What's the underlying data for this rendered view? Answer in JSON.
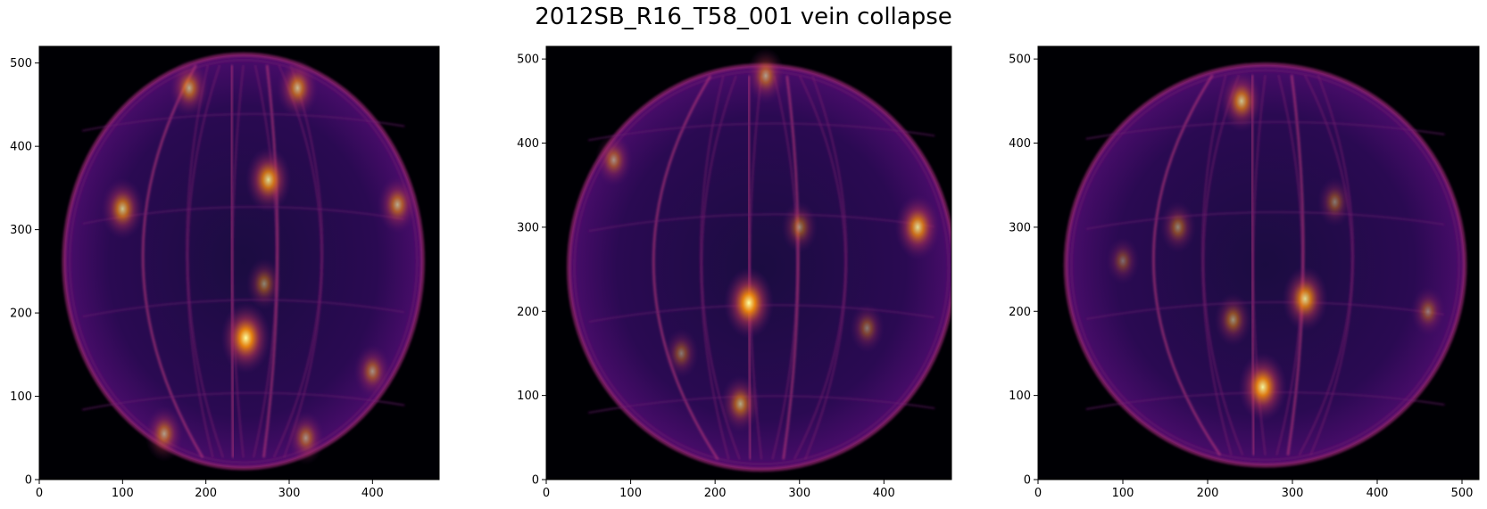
{
  "title": "2012SB_R16_T58_001 vein collapse",
  "chart_data": [
    {
      "type": "heatmap",
      "colormap": "inferno",
      "xlim": [
        0,
        480
      ],
      "ylim": [
        0,
        520
      ],
      "xticks": [
        0,
        100,
        200,
        300,
        400
      ],
      "yticks": [
        0,
        100,
        200,
        300,
        400,
        500
      ],
      "outline": {
        "center": [
          245,
          262
        ],
        "radius_x": 215,
        "radius_y": 248
      },
      "bright_features": [
        {
          "x": 248,
          "y": 170,
          "intensity": 1.0
        },
        {
          "x": 275,
          "y": 360,
          "intensity": 0.85
        },
        {
          "x": 100,
          "y": 325,
          "intensity": 0.75
        },
        {
          "x": 180,
          "y": 470,
          "intensity": 0.65
        },
        {
          "x": 310,
          "y": 470,
          "intensity": 0.7
        },
        {
          "x": 430,
          "y": 330,
          "intensity": 0.65
        },
        {
          "x": 150,
          "y": 55,
          "intensity": 0.6
        },
        {
          "x": 320,
          "y": 50,
          "intensity": 0.55
        },
        {
          "x": 400,
          "y": 130,
          "intensity": 0.55
        },
        {
          "x": 270,
          "y": 235,
          "intensity": 0.5
        }
      ]
    },
    {
      "type": "heatmap",
      "colormap": "inferno",
      "xlim": [
        0,
        480
      ],
      "ylim": [
        0,
        515
      ],
      "xticks": [
        0,
        100,
        200,
        300,
        400
      ],
      "yticks": [
        0,
        100,
        200,
        300,
        400,
        500
      ],
      "outline": {
        "center": [
          255,
          252
        ],
        "radius_x": 228,
        "radius_y": 240
      },
      "bright_features": [
        {
          "x": 240,
          "y": 210,
          "intensity": 1.0
        },
        {
          "x": 440,
          "y": 300,
          "intensity": 0.85
        },
        {
          "x": 260,
          "y": 480,
          "intensity": 0.6
        },
        {
          "x": 230,
          "y": 90,
          "intensity": 0.65
        },
        {
          "x": 80,
          "y": 380,
          "intensity": 0.55
        },
        {
          "x": 300,
          "y": 300,
          "intensity": 0.5
        },
        {
          "x": 160,
          "y": 150,
          "intensity": 0.45
        },
        {
          "x": 380,
          "y": 180,
          "intensity": 0.45
        }
      ]
    },
    {
      "type": "heatmap",
      "colormap": "inferno",
      "xlim": [
        0,
        520
      ],
      "ylim": [
        0,
        515
      ],
      "xticks": [
        0,
        100,
        200,
        300,
        400,
        500
      ],
      "yticks": [
        0,
        100,
        200,
        300,
        400,
        500
      ],
      "outline": {
        "center": [
          268,
          255
        ],
        "radius_x": 235,
        "radius_y": 238
      },
      "bright_features": [
        {
          "x": 265,
          "y": 110,
          "intensity": 0.95
        },
        {
          "x": 315,
          "y": 215,
          "intensity": 0.85
        },
        {
          "x": 240,
          "y": 450,
          "intensity": 0.75
        },
        {
          "x": 165,
          "y": 300,
          "intensity": 0.5
        },
        {
          "x": 230,
          "y": 190,
          "intensity": 0.55
        },
        {
          "x": 350,
          "y": 330,
          "intensity": 0.45
        },
        {
          "x": 460,
          "y": 200,
          "intensity": 0.45
        },
        {
          "x": 100,
          "y": 260,
          "intensity": 0.4
        }
      ]
    }
  ]
}
